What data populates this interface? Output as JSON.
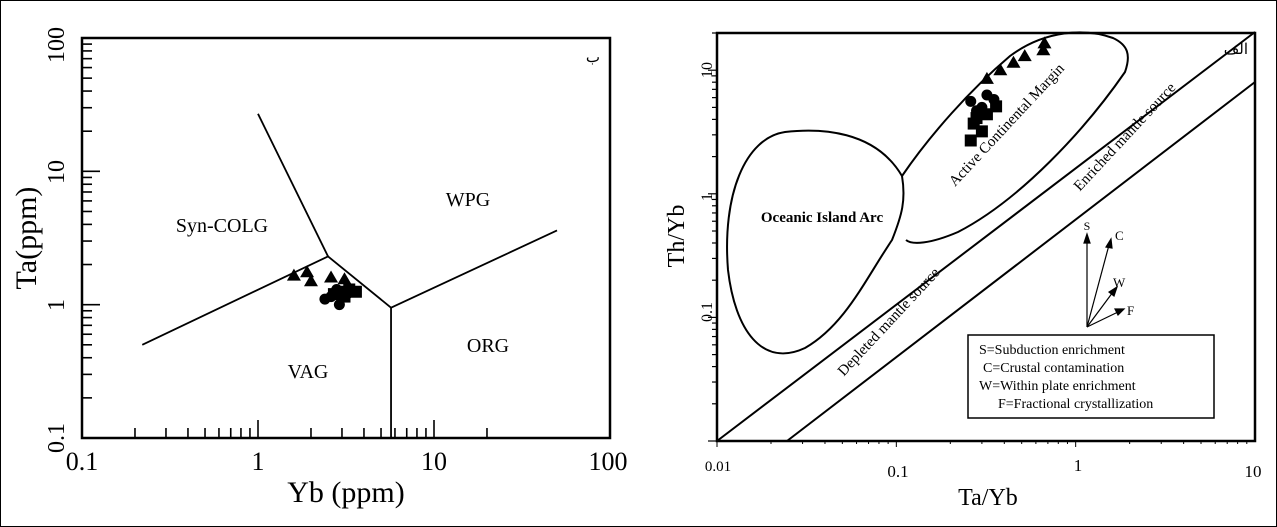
{
  "chart_data": [
    {
      "type": "scatter",
      "panel_label": "ب",
      "xlabel": "Yb (ppm)",
      "ylabel": "Ta(ppm)",
      "xscale": "log",
      "yscale": "log",
      "xlim": [
        0.1,
        100
      ],
      "ylim": [
        0.1,
        100
      ],
      "x_ticks": [
        "0.1",
        "1",
        "10",
        "100"
      ],
      "y_ticks": [
        "0.1",
        "1",
        "10",
        "100"
      ],
      "grid": false,
      "field_labels": [
        "Syn-COLG",
        "WPG",
        "VAG",
        "ORG"
      ],
      "series": [
        {
          "marker": "triangle",
          "points": [
            [
              1.6,
              1.65
            ],
            [
              1.9,
              1.75
            ],
            [
              2.0,
              1.5
            ],
            [
              2.6,
              1.6
            ],
            [
              3.1,
              1.55
            ]
          ]
        },
        {
          "marker": "circle",
          "points": [
            [
              2.4,
              1.1
            ],
            [
              2.8,
              1.3
            ],
            [
              2.9,
              1.0
            ],
            [
              3.2,
              1.2
            ],
            [
              2.6,
              1.15
            ]
          ]
        },
        {
          "marker": "square",
          "points": [
            [
              2.7,
              1.2
            ],
            [
              3.0,
              1.25
            ],
            [
              3.3,
              1.3
            ],
            [
              3.6,
              1.25
            ],
            [
              3.1,
              1.15
            ]
          ]
        }
      ]
    },
    {
      "type": "scatter",
      "panel_label": "الف",
      "xlabel": "Ta/Yb",
      "ylabel": "Th/Yb",
      "xscale": "log",
      "yscale": "log",
      "xlim": [
        0.01,
        10
      ],
      "ylim": [
        0.01,
        20
      ],
      "x_ticks": [
        "0.01",
        "0.1",
        "1",
        "10"
      ],
      "y_ticks": [
        "0.1",
        "1",
        "10"
      ],
      "grid": false,
      "field_labels": [
        "Oceanic Island Arc",
        "Active Continental Margin",
        "Enriched mantle source",
        "Depleted mantle source"
      ],
      "vector_labels": [
        "S",
        "C",
        "W",
        "F"
      ],
      "legend": [
        "S=Subduction enrichment",
        "C=Crustal contamination",
        "W=Within plate enrichment",
        "F=Fractional crystallization"
      ],
      "series": [
        {
          "marker": "triangle",
          "points": [
            [
              0.32,
              8.5
            ],
            [
              0.38,
              10
            ],
            [
              0.45,
              11.5
            ],
            [
              0.52,
              13
            ],
            [
              0.66,
              14.5
            ],
            [
              0.67,
              16.5
            ]
          ]
        },
        {
          "marker": "circle",
          "points": [
            [
              0.26,
              5.6
            ],
            [
              0.3,
              5.0
            ],
            [
              0.32,
              6.3
            ],
            [
              0.35,
              5.8
            ],
            [
              0.28,
              4.7
            ]
          ]
        },
        {
          "marker": "square",
          "points": [
            [
              0.26,
              2.7
            ],
            [
              0.27,
              3.7
            ],
            [
              0.3,
              3.2
            ],
            [
              0.32,
              4.4
            ],
            [
              0.36,
              5.1
            ],
            [
              0.28,
              4.1
            ]
          ]
        }
      ]
    }
  ]
}
